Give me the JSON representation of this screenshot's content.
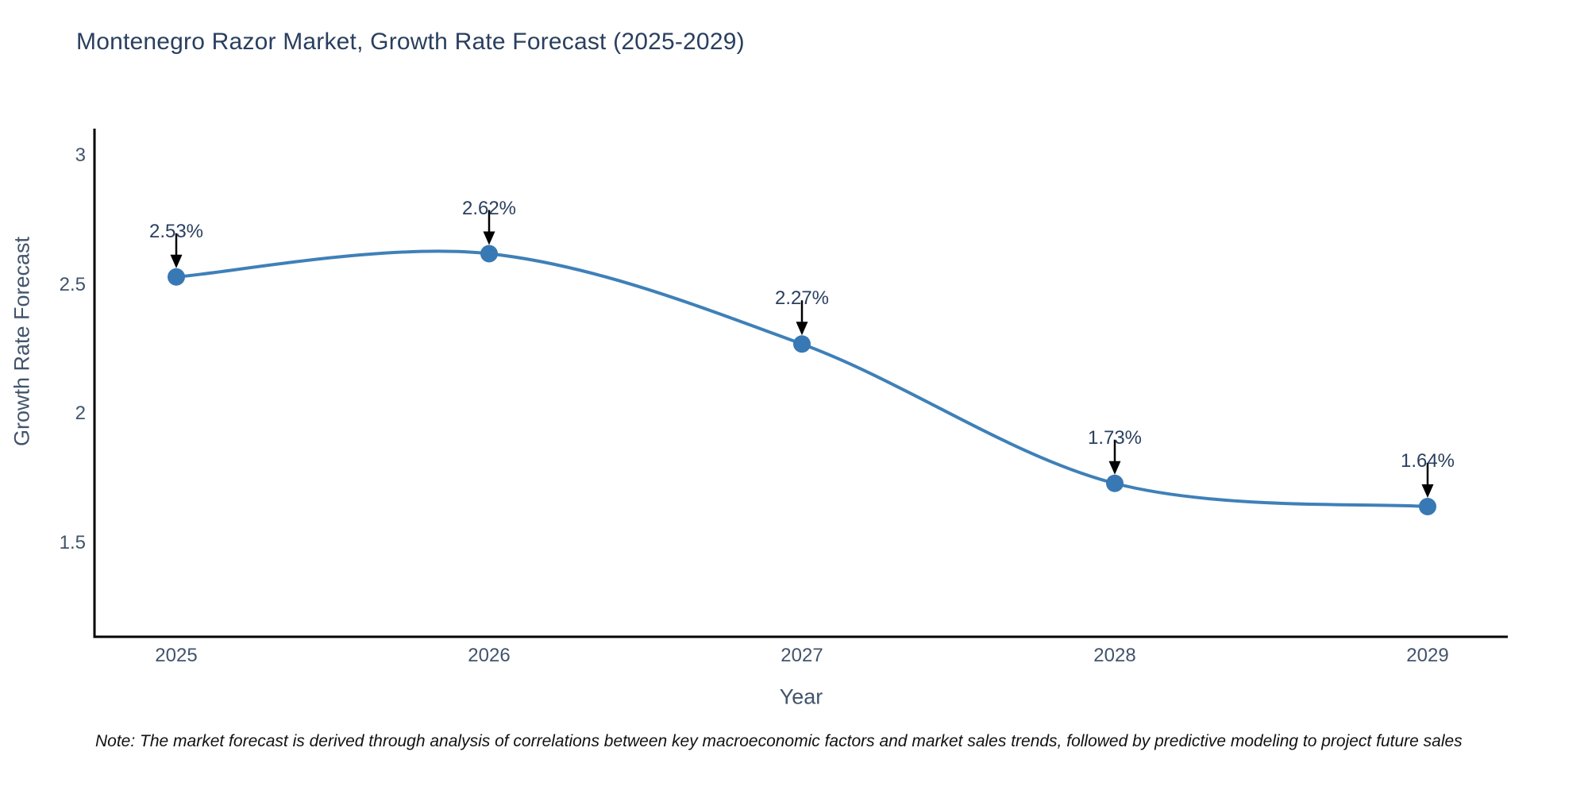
{
  "chart_data": {
    "type": "line",
    "title": "Montenegro Razor Market, Growth Rate Forecast (2025-2029)",
    "xlabel": "Year",
    "ylabel": "Growth Rate Forecast",
    "categories": [
      "2025",
      "2026",
      "2027",
      "2028",
      "2029"
    ],
    "series": [
      {
        "name": "Growth Rate Forecast",
        "values": [
          2.53,
          2.62,
          2.27,
          1.73,
          1.64
        ]
      }
    ],
    "point_labels": [
      "2.53%",
      "2.62%",
      "2.27%",
      "1.73%",
      "1.64%"
    ],
    "y_ticks": [
      1.5,
      2,
      2.5,
      3
    ],
    "y_tick_labels": [
      "1.5",
      "2",
      "2.5",
      "3"
    ],
    "ylim": [
      1.13,
      3.1
    ],
    "grid": false,
    "legend": "none",
    "line_style": "spline",
    "marker_style": "circle",
    "annotation_style": "arrow-down",
    "colors": {
      "line": "#3f80b8",
      "marker": "#3878b4",
      "title_text": "#2a3f5f",
      "tick_text": "#42546b",
      "axis_title_text": "#42546b",
      "annotation_text": "#2a3f5f",
      "arrow": "#000000",
      "spine": "#000000",
      "note_text": "#111111",
      "background": "#ffffff"
    }
  },
  "note": {
    "text": "Note: The market forecast is derived through analysis of correlations between key macroeconomic factors and market sales trends, followed by predictive modeling to project future sales"
  }
}
